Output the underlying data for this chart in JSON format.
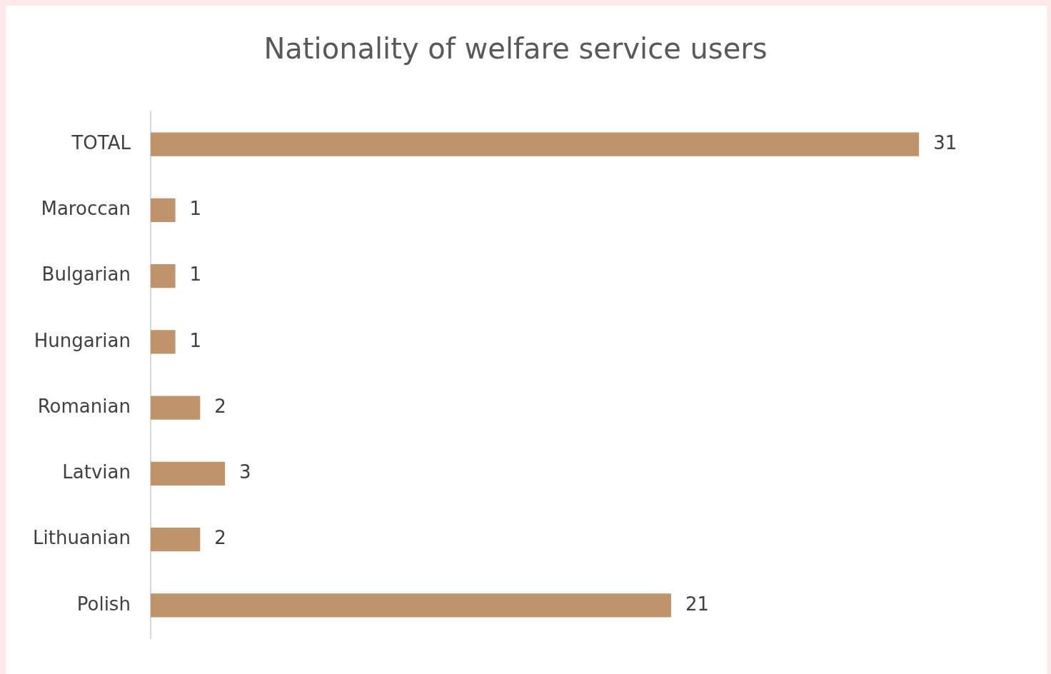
{
  "chart_data": {
    "type": "bar",
    "title": "Nationality of welfare service users",
    "orientation": "horizontal",
    "categories": [
      "TOTAL",
      "Maroccan",
      "Bulgarian",
      "Hungarian",
      "Romanian",
      "Latvian",
      "Lithuanian",
      "Polish"
    ],
    "values": [
      31,
      1,
      1,
      1,
      2,
      3,
      2,
      21
    ],
    "color": "#c0946a",
    "data_labels": true,
    "legend": false,
    "tick_labels": "y"
  }
}
